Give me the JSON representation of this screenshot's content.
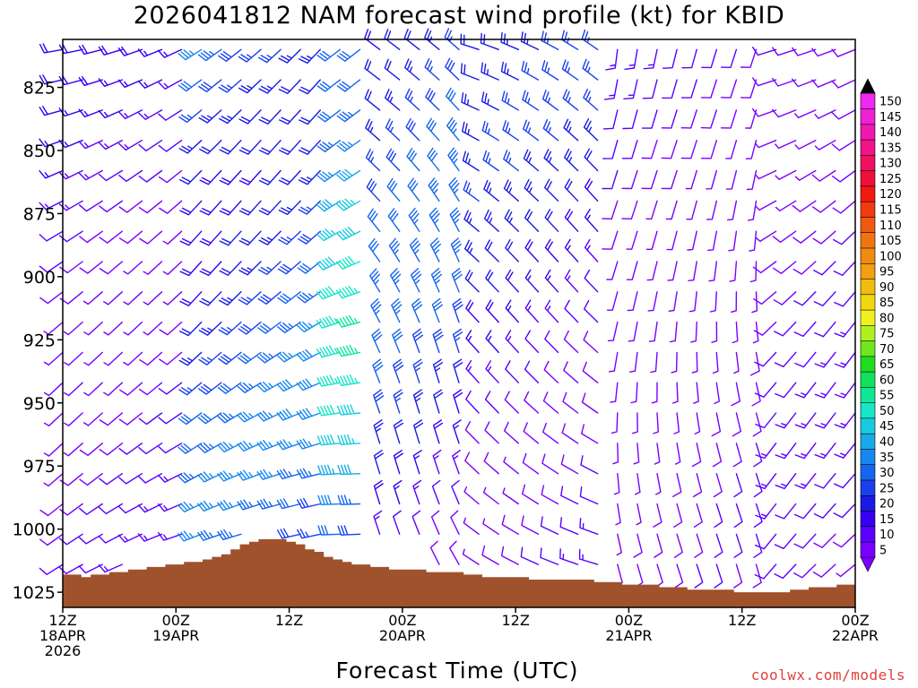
{
  "chart_data": {
    "type": "wind-barb-timeseries",
    "title": "2026041812 NAM forecast wind profile (kt) for KBID",
    "xlabel": "Forecast Time (UTC)",
    "credit": "coolwx.com/models",
    "x_ticks": [
      {
        "hour": 0,
        "lines": [
          "12Z",
          "18APR",
          "2026"
        ]
      },
      {
        "hour": 12,
        "lines": [
          "00Z",
          "19APR"
        ]
      },
      {
        "hour": 24,
        "lines": [
          "12Z"
        ]
      },
      {
        "hour": 36,
        "lines": [
          "00Z",
          "20APR"
        ]
      },
      {
        "hour": 48,
        "lines": [
          "12Z"
        ]
      },
      {
        "hour": 60,
        "lines": [
          "00Z",
          "21APR"
        ]
      },
      {
        "hour": 72,
        "lines": [
          "12Z"
        ]
      },
      {
        "hour": 84,
        "lines": [
          "00Z",
          "22APR"
        ]
      }
    ],
    "x_range_hours": [
      0,
      84
    ],
    "y_ticks": [
      825,
      850,
      875,
      900,
      925,
      950,
      975,
      1000,
      1025
    ],
    "y_range_hPa": [
      806,
      1031
    ],
    "colorbar": {
      "labels": [
        5,
        10,
        15,
        20,
        25,
        30,
        35,
        40,
        45,
        50,
        55,
        60,
        65,
        70,
        75,
        80,
        85,
        90,
        95,
        100,
        105,
        110,
        115,
        120,
        125,
        130,
        135,
        140,
        145,
        150
      ],
      "colors": [
        "#7a00ff",
        "#5a00ff",
        "#3600f0",
        "#1a1ae6",
        "#1a40ee",
        "#1466ee",
        "#1688f0",
        "#18aae8",
        "#18cce0",
        "#18e6c8",
        "#10e896",
        "#10e25c",
        "#20dc20",
        "#6ee620",
        "#b0f020",
        "#f0f020",
        "#f0d810",
        "#f0bc10",
        "#f0a010",
        "#f08a10",
        "#f07410",
        "#f05a10",
        "#f03a10",
        "#f01a10",
        "#f0103a",
        "#f01060",
        "#f01488",
        "#f018b0",
        "#f020d4",
        "#f028f0"
      ],
      "low_color": "#7a00ff",
      "high_color": "#000000"
    },
    "terrain": {
      "color": "#a0522d",
      "surface_pressure_hPa": [
        1018,
        1018,
        1019,
        1018,
        1018,
        1017,
        1017,
        1016,
        1016,
        1015,
        1015,
        1014,
        1014,
        1013,
        1013,
        1012,
        1011,
        1010,
        1008,
        1006,
        1005,
        1004,
        1004,
        1004,
        1005,
        1006,
        1008,
        1009,
        1011,
        1012,
        1013,
        1014,
        1014,
        1015,
        1015,
        1016,
        1016,
        1016,
        1016,
        1017,
        1017,
        1017,
        1017,
        1018,
        1018,
        1019,
        1019,
        1019,
        1019,
        1019,
        1020,
        1020,
        1020,
        1020,
        1020,
        1020,
        1020,
        1021,
        1021,
        1021,
        1022,
        1022,
        1022,
        1022,
        1023,
        1023,
        1023,
        1024,
        1024,
        1024,
        1024,
        1024,
        1025,
        1025,
        1025,
        1025,
        1025,
        1025,
        1024,
        1024,
        1023,
        1023,
        1023,
        1022,
        1022
      ]
    },
    "wind": {
      "direction_phases": [
        {
          "until_hour": 14,
          "dir_deg": 245,
          "speed_kt": 14
        },
        {
          "until_hour": 28,
          "dir_deg": 240,
          "speed_kt": 34
        },
        {
          "until_hour": 32,
          "dir_deg": 250,
          "speed_kt": 48
        },
        {
          "until_hour": 44,
          "dir_deg": 325,
          "speed_kt": 28
        },
        {
          "until_hour": 58,
          "dir_deg": 300,
          "speed_kt": 20
        },
        {
          "until_hour": 74,
          "dir_deg": 180,
          "speed_kt": 10
        },
        {
          "until_hour": 84,
          "dir_deg": 235,
          "speed_kt": 12
        }
      ]
    }
  }
}
